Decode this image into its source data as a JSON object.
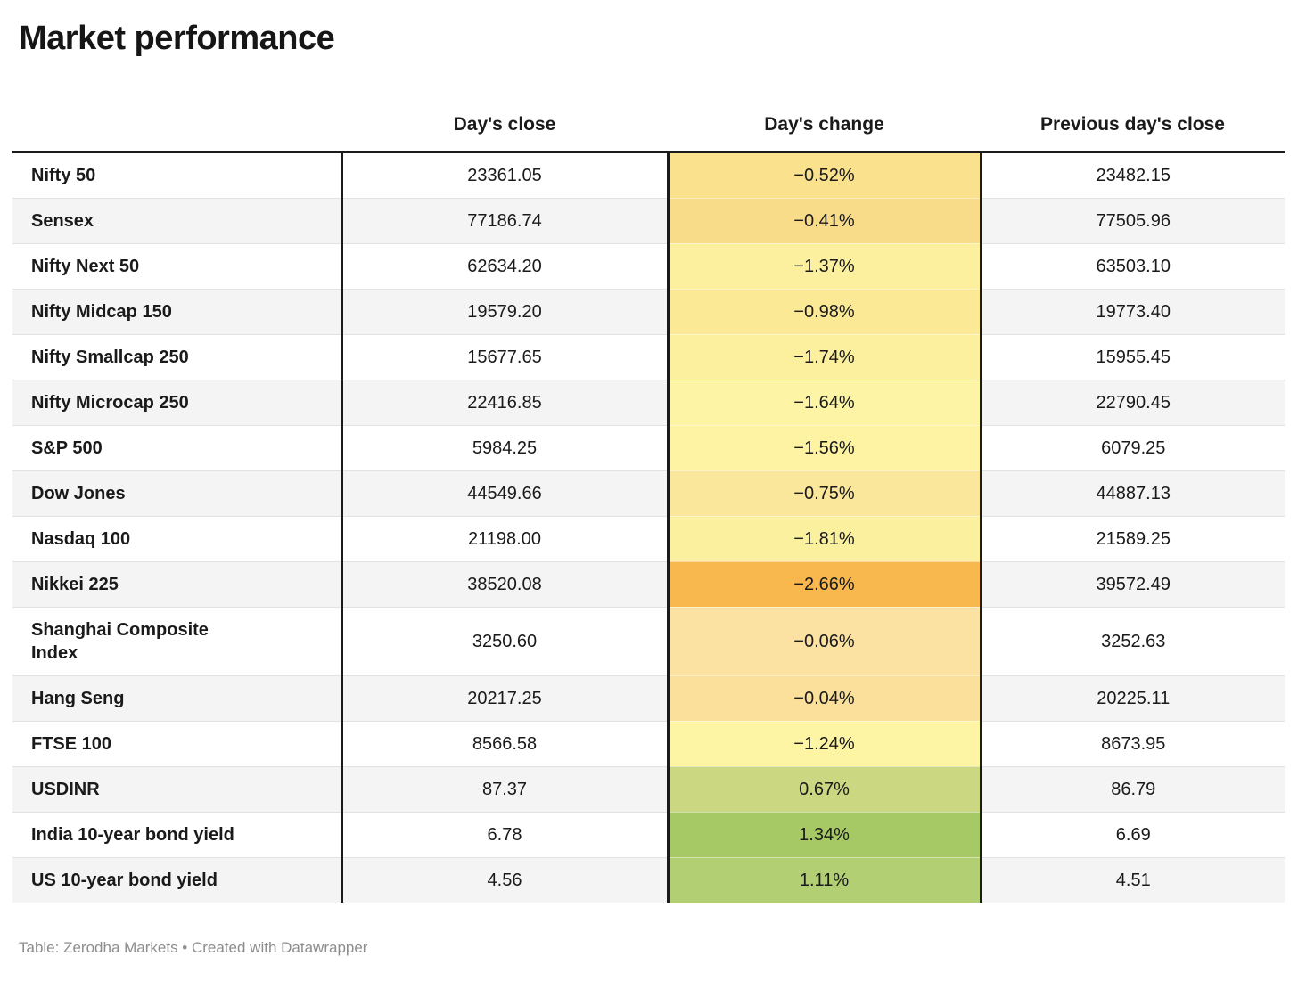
{
  "title": "Market performance",
  "table": {
    "row_header_column": "",
    "columns": [
      "Day's close",
      "Day's change",
      "Previous day's close"
    ]
  },
  "footer": "Table: Zerodha Markets • Created with Datawrapper",
  "colors": {
    "text": "#1a1a1a",
    "table_border_black": "#1a1a1a",
    "zebra_stripe": "#f4f4f4",
    "row_divider": "#e2e2e2",
    "footer_gray": "#8d8d8d",
    "negative_extreme_orange": "#f9b84e",
    "positive_green": "#a6c966"
  },
  "chart_data": {
    "type": "table",
    "title": "Market performance",
    "columns": [
      "",
      "Day's close",
      "Day's change",
      "Previous day's close"
    ],
    "legend_position": "none",
    "grid": "zebra-striped rows, black column separators around Day's change, heatmap-colored Day's change column",
    "rows": [
      {
        "label": "Nifty 50",
        "days_close": "23361.05",
        "days_change": "−0.52%",
        "previous_days_close": "23482.15",
        "change_color": "#fae18e"
      },
      {
        "label": "Sensex",
        "days_close": "77186.74",
        "days_change": "−0.41%",
        "previous_days_close": "77505.96",
        "change_color": "#f9dc8a"
      },
      {
        "label": "Nifty Next 50",
        "days_close": "62634.20",
        "days_change": "−1.37%",
        "previous_days_close": "63503.10",
        "change_color": "#fcf09e"
      },
      {
        "label": "Nifty Midcap 150",
        "days_close": "19579.20",
        "days_change": "−0.98%",
        "previous_days_close": "19773.40",
        "change_color": "#fbe996"
      },
      {
        "label": "Nifty Smallcap 250",
        "days_close": "15677.65",
        "days_change": "−1.74%",
        "previous_days_close": "15955.45",
        "change_color": "#fcf09e"
      },
      {
        "label": "Nifty Microcap 250",
        "days_close": "22416.85",
        "days_change": "−1.64%",
        "previous_days_close": "22790.45",
        "change_color": "#fdf4a6"
      },
      {
        "label": "S&P 500",
        "days_close": "5984.25",
        "days_change": "−1.56%",
        "previous_days_close": "6079.25",
        "change_color": "#fdf3a2"
      },
      {
        "label": "Dow Jones",
        "days_close": "44549.66",
        "days_change": "−0.75%",
        "previous_days_close": "44887.13",
        "change_color": "#fae79c"
      },
      {
        "label": "Nasdaq 100",
        "days_close": "21198.00",
        "days_change": "−1.81%",
        "previous_days_close": "21589.25",
        "change_color": "#fbf09e"
      },
      {
        "label": "Nikkei 225",
        "days_close": "38520.08",
        "days_change": "−2.66%",
        "previous_days_close": "39572.49",
        "change_color": "#f9b84e"
      },
      {
        "label": "Shanghai Composite Index",
        "days_close": "3250.60",
        "days_change": "−0.06%",
        "previous_days_close": "3252.63",
        "change_color": "#fbe2a2"
      },
      {
        "label": "Hang Seng",
        "days_close": "20217.25",
        "days_change": "−0.04%",
        "previous_days_close": "20225.11",
        "change_color": "#fbe09c"
      },
      {
        "label": "FTSE 100",
        "days_close": "8566.58",
        "days_change": "−1.24%",
        "previous_days_close": "8673.95",
        "change_color": "#fdf5a4"
      },
      {
        "label": "USDINR",
        "days_close": "87.37",
        "days_change": "0.67%",
        "previous_days_close": "86.79",
        "change_color": "#cbd781"
      },
      {
        "label": "India 10-year bond yield",
        "days_close": "6.78",
        "days_change": "1.34%",
        "previous_days_close": "6.69",
        "change_color": "#a6c966"
      },
      {
        "label": "US 10-year bond yield",
        "days_close": "4.56",
        "days_change": "1.11%",
        "previous_days_close": "4.51",
        "change_color": "#b2cf74"
      }
    ]
  }
}
